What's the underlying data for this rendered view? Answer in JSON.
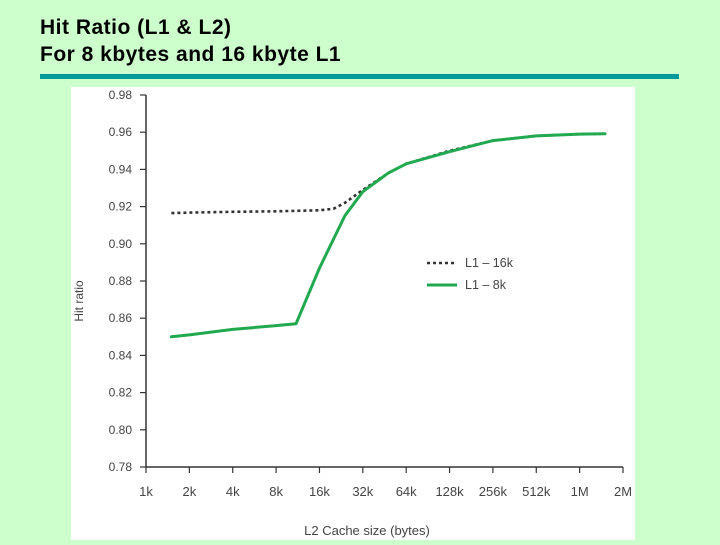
{
  "slide": {
    "title_line1": "Hit Ratio (L1 & L2)",
    "title_line2": "For 8 kbytes and 16 kbyte L1",
    "accent_color": "#009999",
    "background_color": "#ccffcc"
  },
  "chart_data": {
    "type": "line",
    "title": "",
    "xlabel": "L2 Cache size (bytes)",
    "ylabel": "Hit ratio",
    "x_scale": "log2",
    "x_tick_labels": [
      "1k",
      "2k",
      "4k",
      "8k",
      "16k",
      "32k",
      "64k",
      "128k",
      "256k",
      "512k",
      "1M",
      "2M"
    ],
    "y_tick_labels": [
      "0.98",
      "0.96",
      "0.94",
      "0.92",
      "0.90",
      "0.88",
      "0.86",
      "0.84",
      "0.82",
      "0.80",
      "0.78"
    ],
    "ylim": [
      0.78,
      0.98
    ],
    "grid": false,
    "legend_position": "center-right",
    "series": [
      {
        "name": "L1 – 16k",
        "style": "dotted",
        "color": "#333333",
        "points": [
          [
            "1.5k",
            0.9165
          ],
          [
            "2k",
            0.9168
          ],
          [
            "4k",
            0.9172
          ],
          [
            "8k",
            0.9175
          ],
          [
            "12k",
            0.9178
          ],
          [
            "16k",
            0.918
          ],
          [
            "20k",
            0.9188
          ],
          [
            "24k",
            0.922
          ],
          [
            "32k",
            0.929
          ],
          [
            "48k",
            0.938
          ],
          [
            "64k",
            0.943
          ],
          [
            "128k",
            0.95
          ],
          [
            "256k",
            0.9555
          ],
          [
            "512k",
            0.958
          ],
          [
            "1M",
            0.959
          ],
          [
            "1.5M",
            0.9592
          ]
        ]
      },
      {
        "name": "L1 – 8k",
        "style": "solid",
        "color": "#21a950",
        "points": [
          [
            "1.5k",
            0.85
          ],
          [
            "2k",
            0.851
          ],
          [
            "4k",
            0.854
          ],
          [
            "8k",
            0.856
          ],
          [
            "11k",
            0.857
          ],
          [
            "16k",
            0.887
          ],
          [
            "24k",
            0.915
          ],
          [
            "32k",
            0.928
          ],
          [
            "48k",
            0.938
          ],
          [
            "64k",
            0.943
          ],
          [
            "128k",
            0.9495
          ],
          [
            "256k",
            0.9555
          ],
          [
            "512k",
            0.958
          ],
          [
            "1M",
            0.959
          ],
          [
            "1.5M",
            0.9592
          ]
        ]
      }
    ]
  }
}
